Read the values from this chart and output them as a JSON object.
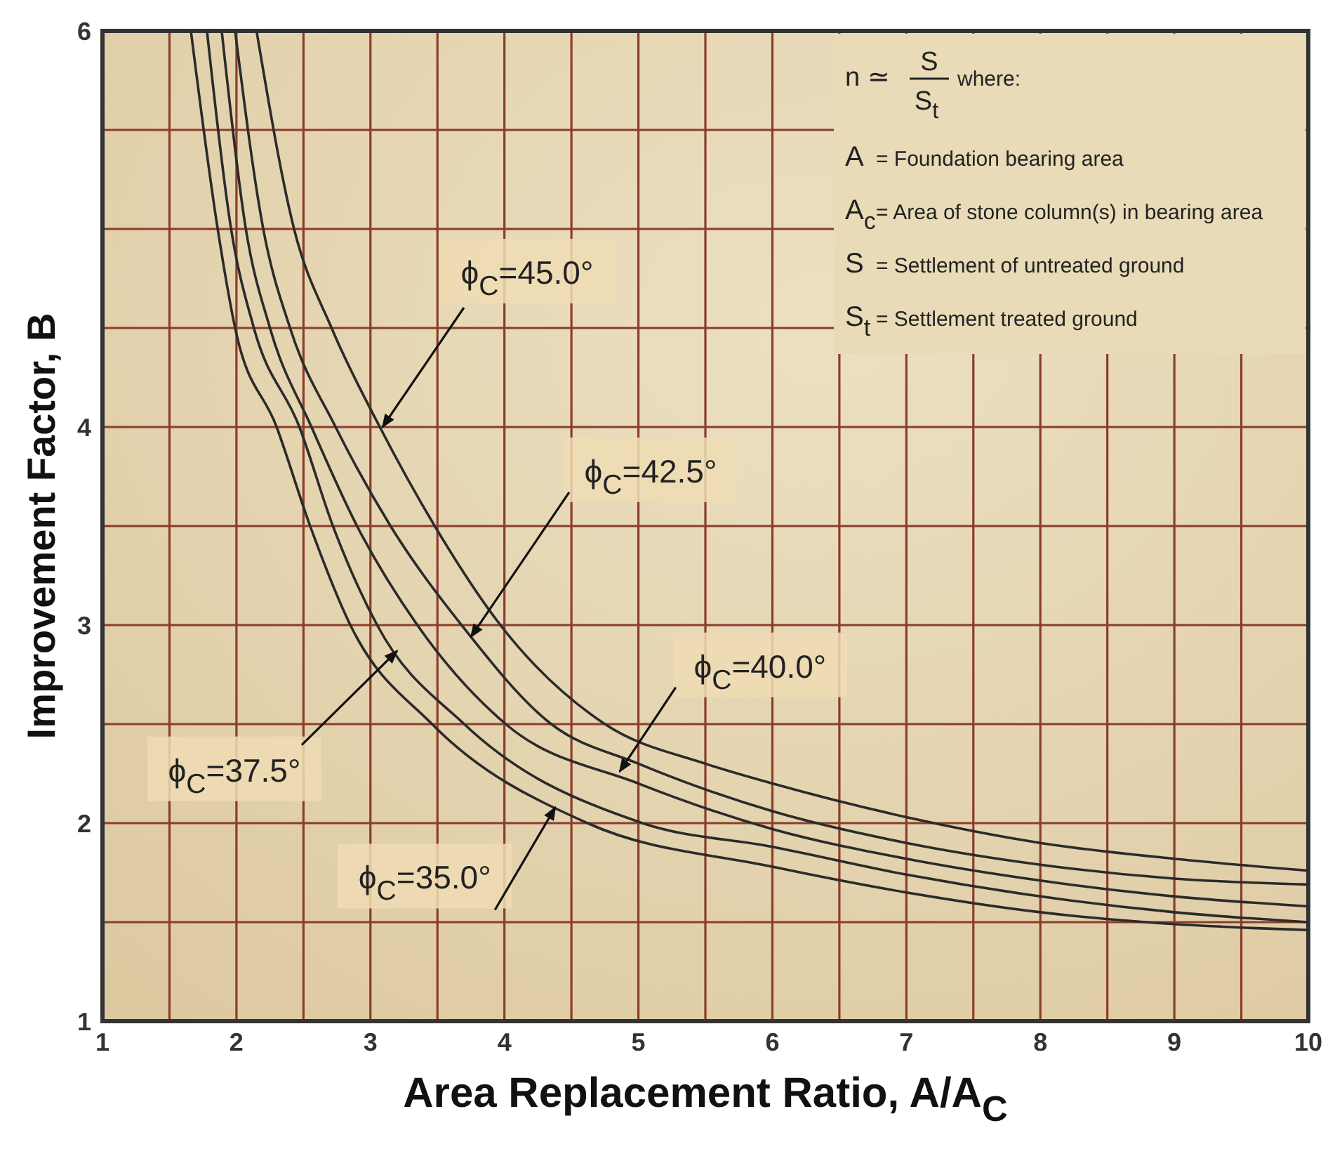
{
  "chart_data": {
    "type": "line",
    "xlabel": "Area Replacement Ratio, A/A$_{C}$",
    "ylabel": "Improvement Factor, B",
    "xlim": [
      1,
      10
    ],
    "ylim": [
      1,
      6
    ],
    "xticks": [
      1,
      {
        "value": 1.5,
        "label": null
      },
      2,
      {
        "value": 2.5,
        "label": null
      },
      3,
      {
        "value": 3.5,
        "label": null
      },
      4,
      {
        "value": 4.5,
        "label": null
      },
      5,
      {
        "value": 5.5,
        "label": null
      },
      6,
      {
        "value": 6.5,
        "label": null
      },
      7,
      {
        "value": 7.5,
        "label": null
      },
      8,
      {
        "value": 8.5,
        "label": null
      },
      9,
      {
        "value": 9.5,
        "label": null
      },
      10
    ],
    "yticks": [
      1,
      {
        "value": 1.5,
        "label": null
      },
      2,
      {
        "value": 2.5,
        "label": null
      },
      3,
      {
        "value": 3.5,
        "label": null
      },
      4,
      {
        "value": 4.5,
        "label": null
      },
      {
        "value": 5,
        "label": null
      },
      {
        "value": 5.5,
        "label": null
      },
      6
    ],
    "grid": true,
    "marker": "none",
    "line_style": "solid",
    "series": [
      {
        "color": "#2b2b2b",
        "x": [
          2.15,
          2.43,
          2.71,
          3.07,
          3.48,
          3.97,
          4.75,
          5.5,
          6,
          7,
          8,
          9,
          10
        ],
        "values": [
          6,
          5,
          4.5,
          4,
          3.5,
          3,
          2.5,
          2.3,
          2.2,
          2.03,
          1.9,
          1.82,
          1.76
        ]
      },
      {
        "color": "#2b2b2b",
        "x": [
          1.99,
          2.2,
          2.4,
          2.74,
          3.15,
          3.68,
          4.35,
          5,
          6,
          7,
          8,
          9,
          10
        ],
        "values": [
          6,
          5,
          4.5,
          4,
          3.5,
          3,
          2.5,
          2.3,
          2.06,
          1.9,
          1.79,
          1.72,
          1.69
        ]
      },
      {
        "color": "#2b2b2b",
        "x": [
          1.89,
          2.07,
          2.25,
          2.56,
          2.9,
          3.35,
          4.01,
          5,
          6,
          7,
          8,
          9,
          10
        ],
        "values": [
          6,
          5,
          4.5,
          4,
          3.5,
          3,
          2.5,
          2.2,
          1.97,
          1.82,
          1.71,
          1.63,
          1.58
        ]
      },
      {
        "color": "#2b2b2b",
        "x": [
          1.78,
          1.96,
          2.13,
          2.47,
          2.72,
          3.05,
          3.7,
          5.03,
          6,
          7,
          8,
          9,
          10
        ],
        "values": [
          6,
          5,
          4.5,
          4,
          3.5,
          3,
          2.5,
          2,
          1.88,
          1.74,
          1.63,
          1.55,
          1.5
        ]
      },
      {
        "color": "#2b2b2b",
        "x": [
          1.66,
          1.86,
          1.99,
          2.3,
          2.55,
          2.85,
          3.46,
          4.62,
          6,
          7,
          8,
          9,
          10
        ],
        "values": [
          6,
          5,
          4.5,
          4,
          3.5,
          3,
          2.5,
          2,
          1.78,
          1.65,
          1.55,
          1.49,
          1.46
        ]
      }
    ],
    "annotations": [
      {
        "text": "ϕ$_{C}$=45.0°",
        "x": 3.09,
        "y": 4
      },
      {
        "text": "ϕ$_{C}$=42.5°",
        "x": 3.75,
        "y": 2.94
      },
      {
        "text": "ϕ$_{C}$=40.0°",
        "x": 4.86,
        "y": 2.26
      },
      {
        "text": "ϕ$_{C}$=37.5°",
        "x": 3.2,
        "y": 2.87
      },
      {
        "text": "ϕ$_{C}$=35.0°",
        "x": 4.38,
        "y": 2.08
      },
      "n ≃",
      "S",
      "S$_{t}$",
      "where:",
      "A",
      "= Foundation bearing area",
      "A$_{c}$",
      "= Area of stone column(s) in bearing area",
      "S",
      "= Settlement of untreated ground",
      "S$_{t}$",
      "= Settlement treated ground"
    ]
  }
}
